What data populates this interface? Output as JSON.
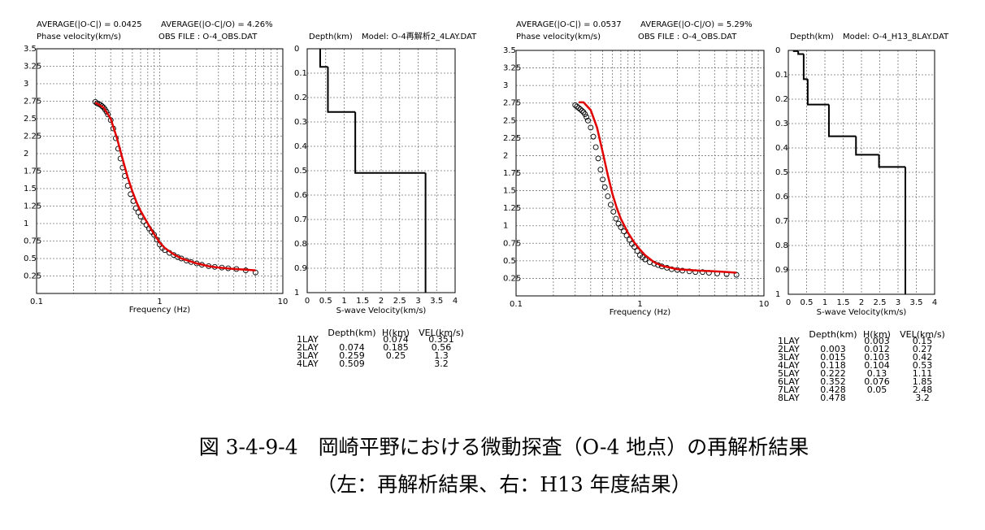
{
  "chart_data": [
    {
      "type": "dispersion",
      "annotations": [
        "AVERAGE(|O-C|) = 0.0425",
        "AVERAGE(|O-C|/O) = 4.26%",
        "OBS FILE : O-4_OBS.DAT"
      ],
      "ylabel": "Phase velocity(km/s)",
      "xlabel": "Frequency (Hz)",
      "xscale": "log",
      "xlim": [
        0.1,
        10
      ],
      "xticks": [
        0.1,
        1,
        10
      ],
      "ylim": [
        0,
        3.5
      ],
      "yticks": [
        0.25,
        0.5,
        0.75,
        1,
        1.25,
        1.5,
        1.75,
        2,
        2.25,
        2.5,
        2.75,
        3,
        3.25,
        3.5
      ],
      "grid": true,
      "series": [
        {
          "style": "marker",
          "color": "#000000",
          "x": [
            0.3,
            0.31,
            0.32,
            0.33,
            0.34,
            0.35,
            0.36,
            0.37,
            0.38,
            0.4,
            0.42,
            0.44,
            0.46,
            0.48,
            0.5,
            0.52,
            0.55,
            0.58,
            0.61,
            0.64,
            0.67,
            0.7,
            0.74,
            0.78,
            0.82,
            0.86,
            0.9,
            0.95,
            1.0,
            1.05,
            1.1,
            1.2,
            1.3,
            1.4,
            1.5,
            1.65,
            1.8,
            2.0,
            2.2,
            2.5,
            2.8,
            3.2,
            3.6,
            4.2,
            5.0,
            6.0
          ],
          "values": [
            2.74,
            2.72,
            2.71,
            2.7,
            2.68,
            2.66,
            2.63,
            2.6,
            2.56,
            2.48,
            2.36,
            2.22,
            2.07,
            1.93,
            1.8,
            1.68,
            1.54,
            1.42,
            1.32,
            1.22,
            1.16,
            1.1,
            1.03,
            0.98,
            0.93,
            0.88,
            0.84,
            0.77,
            0.7,
            0.65,
            0.62,
            0.58,
            0.55,
            0.52,
            0.5,
            0.47,
            0.45,
            0.43,
            0.41,
            0.39,
            0.38,
            0.37,
            0.36,
            0.35,
            0.33,
            0.3
          ]
        },
        {
          "style": "line",
          "color": "#e00000",
          "x": [
            0.3,
            0.35,
            0.4,
            0.45,
            0.5,
            0.55,
            0.6,
            0.65,
            0.7,
            0.8,
            0.9,
            1.0,
            1.1,
            1.3,
            1.5,
            2.0,
            2.5,
            3.0,
            4.0,
            5.0,
            6.0
          ],
          "values": [
            2.73,
            2.66,
            2.5,
            2.22,
            1.92,
            1.66,
            1.46,
            1.3,
            1.18,
            1.0,
            0.85,
            0.73,
            0.65,
            0.56,
            0.5,
            0.43,
            0.39,
            0.37,
            0.35,
            0.34,
            0.33
          ]
        }
      ]
    },
    {
      "type": "profile",
      "ylabel": "Depth(km)",
      "title": "Model: O-4再解析2_4LAY.DAT",
      "xlabel": "S-wave Velocity(km/s)",
      "xlim": [
        0,
        4
      ],
      "xticks": [
        0,
        0.5,
        1,
        1.5,
        2,
        2.5,
        3,
        3.5,
        4
      ],
      "ylim": [
        0,
        1
      ],
      "yticks": [
        0,
        0.1,
        0.2,
        0.3,
        0.4,
        0.5,
        0.6,
        0.7,
        0.8,
        0.9,
        1
      ],
      "grid": true,
      "color": "#000000",
      "table": {
        "columns": [
          "Depth(km)",
          "H(km)",
          "VEL(km/s)"
        ],
        "rows": [
          [
            "1LAY",
            null,
            0.074,
            0.351
          ],
          [
            "2LAY",
            0.074,
            0.185,
            0.56
          ],
          [
            "3LAY",
            0.259,
            0.25,
            1.3
          ],
          [
            "4LAY",
            0.509,
            null,
            3.2
          ]
        ]
      }
    },
    {
      "type": "dispersion",
      "annotations": [
        "AVERAGE(|O-C|) = 0.0537",
        "AVERAGE(|O-C|/O) = 5.29%",
        "OBS FILE : O-4_OBS.DAT"
      ],
      "ylabel": "Phase velocity(km/s)",
      "xlabel": "Frequency (Hz)",
      "xscale": "log",
      "xlim": [
        0.1,
        10
      ],
      "xticks": [
        0.1,
        1,
        10
      ],
      "ylim": [
        0,
        3.5
      ],
      "yticks": [
        0.25,
        0.5,
        0.75,
        1,
        1.25,
        1.5,
        1.75,
        2,
        2.25,
        2.5,
        2.75,
        3,
        3.25,
        3.5
      ],
      "grid": true,
      "series": [
        {
          "style": "marker",
          "color": "#000000",
          "x": [
            0.3,
            0.31,
            0.32,
            0.33,
            0.34,
            0.35,
            0.36,
            0.37,
            0.38,
            0.4,
            0.42,
            0.44,
            0.46,
            0.48,
            0.5,
            0.52,
            0.55,
            0.58,
            0.61,
            0.64,
            0.67,
            0.7,
            0.74,
            0.78,
            0.82,
            0.86,
            0.9,
            0.95,
            1.0,
            1.05,
            1.1,
            1.2,
            1.3,
            1.4,
            1.5,
            1.65,
            1.8,
            2.0,
            2.2,
            2.5,
            2.8,
            3.2,
            3.6,
            4.2,
            5.0,
            6.0
          ],
          "values": [
            2.72,
            2.7,
            2.68,
            2.66,
            2.64,
            2.62,
            2.59,
            2.55,
            2.5,
            2.4,
            2.27,
            2.12,
            1.96,
            1.8,
            1.66,
            1.55,
            1.42,
            1.3,
            1.2,
            1.1,
            1.03,
            0.98,
            0.92,
            0.86,
            0.8,
            0.74,
            0.7,
            0.64,
            0.58,
            0.55,
            0.52,
            0.48,
            0.46,
            0.44,
            0.42,
            0.4,
            0.38,
            0.37,
            0.36,
            0.35,
            0.34,
            0.34,
            0.33,
            0.32,
            0.31,
            0.3
          ]
        },
        {
          "style": "line",
          "color": "#e00000",
          "x": [
            0.32,
            0.35,
            0.4,
            0.45,
            0.5,
            0.55,
            0.6,
            0.65,
            0.7,
            0.8,
            0.9,
            1.0,
            1.1,
            1.3,
            1.5,
            2.0,
            2.5,
            3.0,
            4.0,
            5.0,
            6.0
          ],
          "values": [
            2.76,
            2.76,
            2.65,
            2.4,
            2.05,
            1.72,
            1.45,
            1.25,
            1.1,
            0.9,
            0.76,
            0.66,
            0.58,
            0.48,
            0.43,
            0.38,
            0.37,
            0.36,
            0.35,
            0.34,
            0.33
          ]
        }
      ]
    },
    {
      "type": "profile",
      "ylabel": "Depth(km)",
      "title": "Model: O-4_H13_8LAY.DAT",
      "xlabel": "S-wave Velocity(km/s)",
      "xlim": [
        0,
        4
      ],
      "xticks": [
        0,
        0.5,
        1,
        1.5,
        2,
        2.5,
        3,
        3.5,
        4
      ],
      "ylim": [
        0,
        1
      ],
      "yticks": [
        0,
        0.1,
        0.2,
        0.3,
        0.4,
        0.5,
        0.6,
        0.7,
        0.8,
        0.9,
        1
      ],
      "grid": true,
      "color": "#000000",
      "table": {
        "columns": [
          "Depth(km)",
          "H(km)",
          "VEL(km/s)"
        ],
        "rows": [
          [
            "1LAY",
            null,
            0.003,
            0.15
          ],
          [
            "2LAY",
            0.003,
            0.012,
            0.27
          ],
          [
            "3LAY",
            0.015,
            0.103,
            0.42
          ],
          [
            "4LAY",
            0.118,
            0.104,
            0.53
          ],
          [
            "5LAY",
            0.222,
            0.13,
            1.11
          ],
          [
            "6LAY",
            0.352,
            0.076,
            1.85
          ],
          [
            "7LAY",
            0.428,
            0.05,
            2.48
          ],
          [
            "8LAY",
            0.478,
            null,
            3.2
          ]
        ]
      }
    }
  ],
  "caption": [
    "図 3-4-9-4　岡崎平野における微動探査（O-4 地点）の再解析結果",
    "（左：再解析結果、右：H13 年度結果）"
  ]
}
